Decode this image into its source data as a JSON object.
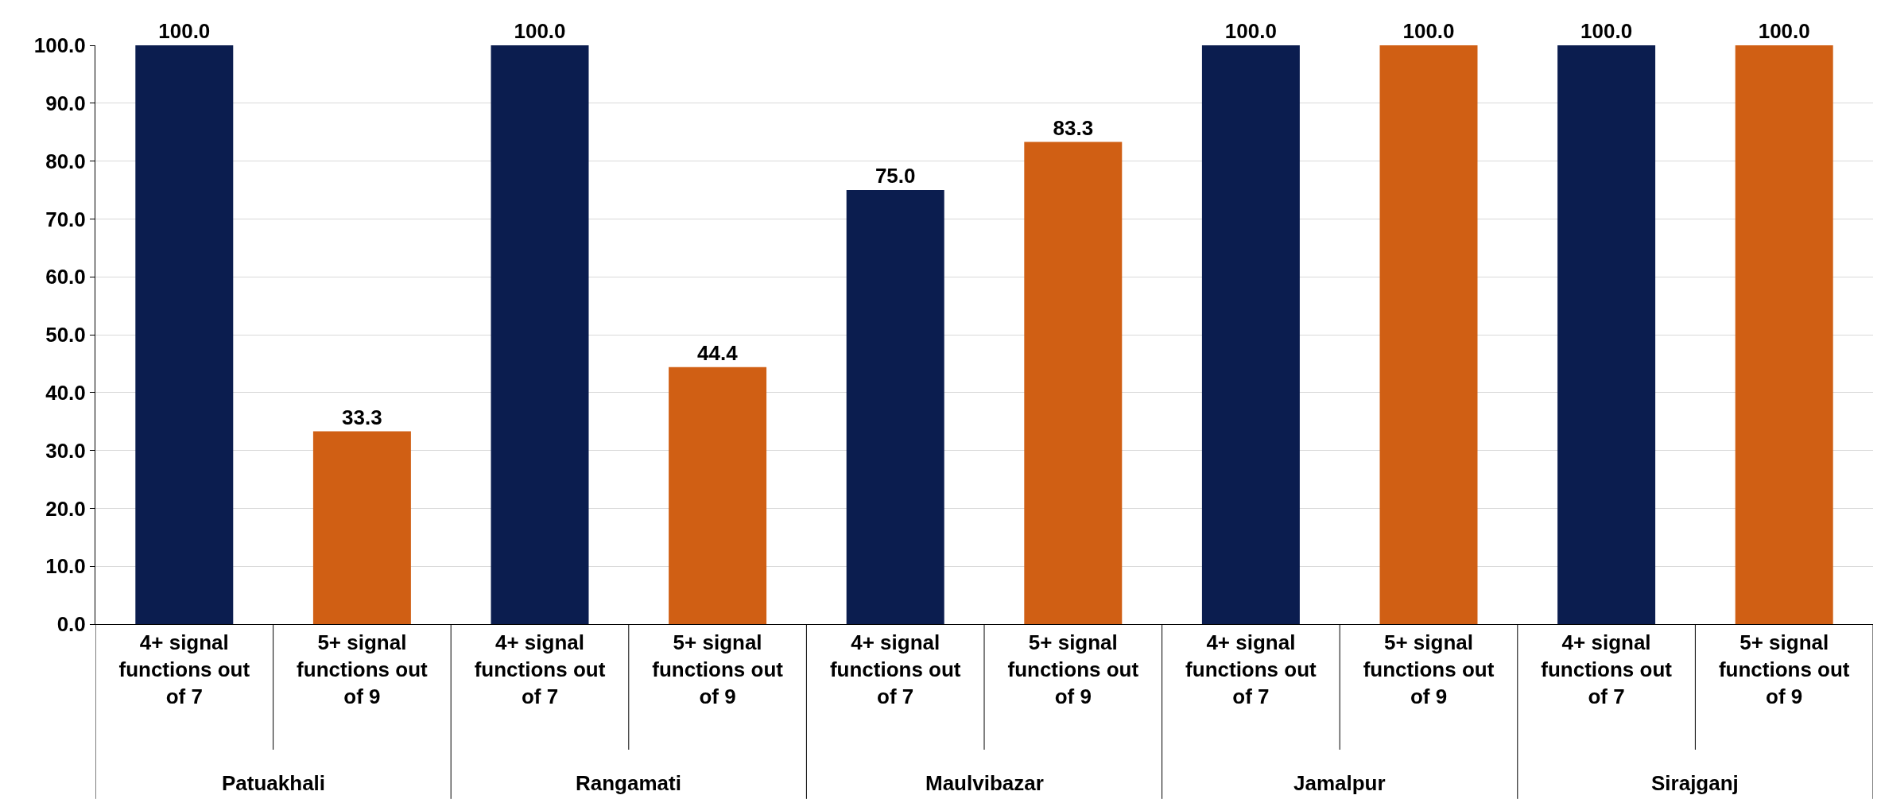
{
  "chart_data": {
    "type": "bar",
    "categories": [
      "4+ signal functions out of 7",
      "5+ signal functions out of 9",
      "4+ signal functions out of 7",
      "5+ signal functions out of 9",
      "4+ signal functions out of 7",
      "5+ signal functions out of 9",
      "4+ signal functions out of 7",
      "5+ signal functions out of 9",
      "4+ signal functions out of 7",
      "5+ signal functions out of 9"
    ],
    "values": [
      100.0,
      33.3,
      100.0,
      44.4,
      75.0,
      83.3,
      100.0,
      100.0,
      100.0,
      100.0
    ],
    "colors": [
      "#0b1d4f",
      "#d05f14",
      "#0b1d4f",
      "#d05f14",
      "#0b1d4f",
      "#d05f14",
      "#0b1d4f",
      "#d05f14",
      "#0b1d4f",
      "#d05f14"
    ],
    "annotations": [
      "Patuakhali",
      "Rangamati",
      "Maulvibazar",
      "Jamalpur",
      "Sirajganj"
    ],
    "value_labels": [
      "100.0",
      "33.3",
      "100.0",
      "44.4",
      "75.0",
      "83.3",
      "100.0",
      "100.0",
      "100.0",
      "100.0"
    ],
    "ylim": [
      0,
      100
    ],
    "yticks": [
      {
        "value": 0,
        "label": "0.0"
      },
      {
        "value": 10,
        "label": "10.0"
      },
      {
        "value": 20,
        "label": "20.0"
      },
      {
        "value": 30,
        "label": "30.0"
      },
      {
        "value": 40,
        "label": "40.0"
      },
      {
        "value": 50,
        "label": "50.0"
      },
      {
        "value": 60,
        "label": "60.0"
      },
      {
        "value": 70,
        "label": "70.0"
      },
      {
        "value": 80,
        "label": "80.0"
      },
      {
        "value": 90,
        "label": "90.0"
      },
      {
        "value": 100,
        "label": "100.0"
      }
    ],
    "grid": "y"
  }
}
